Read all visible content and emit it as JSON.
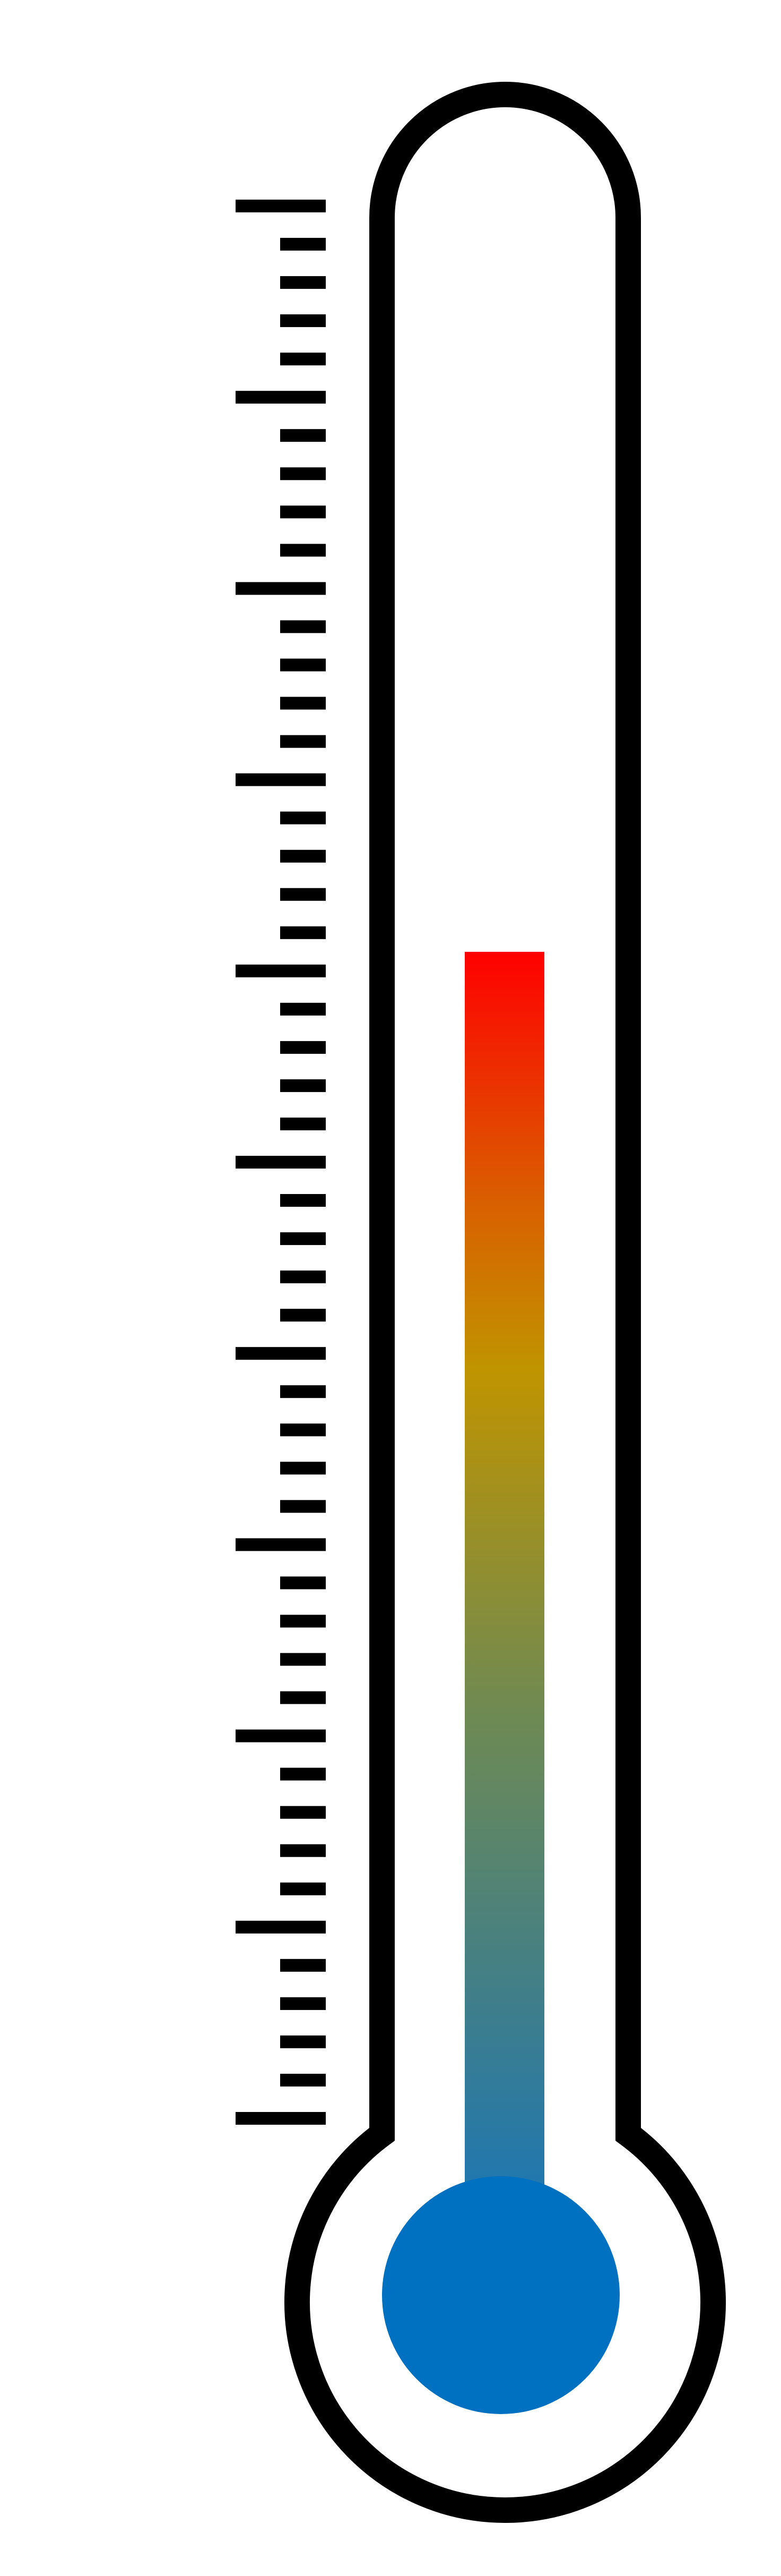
{
  "thermometer": {
    "fill_level": 0.61,
    "scale": {
      "major_ticks": 10,
      "minor_per_major": 4
    },
    "colors": {
      "outline": "#000000",
      "background": "#ffffff",
      "fill_top": "#ff0000",
      "fill_mid_upper": "#d96000",
      "fill_mid": "#c09400",
      "fill_mid_lower": "#6f8a52",
      "fill_bottom": "#1c76b4",
      "bulb": "#0070c0"
    }
  }
}
